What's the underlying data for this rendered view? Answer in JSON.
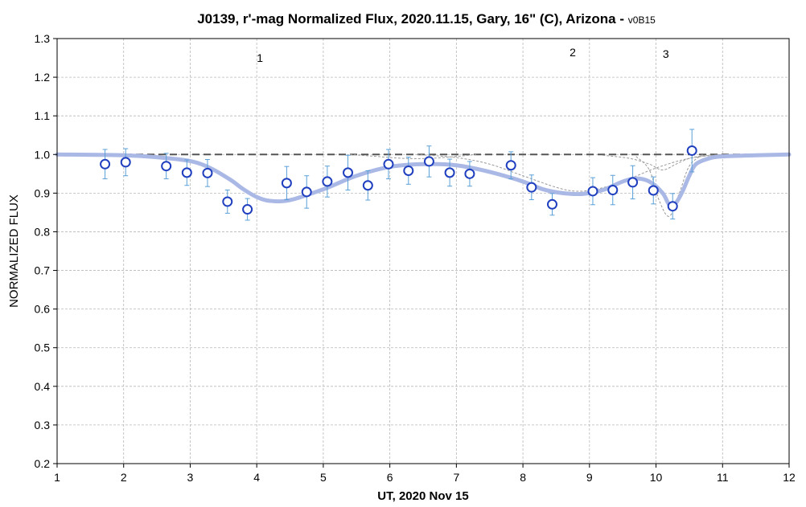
{
  "chart_data": {
    "type": "scatter",
    "title": "J0139, r'-mag Normalized Flux, 2020.11.15, Gary, 16\" (C), Arizona -",
    "subtitle": "v0B15",
    "xlabel": "UT, 2020 Nov 15",
    "ylabel": "NORMALIZED FLUX",
    "xlim": [
      1,
      12
    ],
    "ylim": [
      0.2,
      1.3
    ],
    "x_ticks": [
      "1",
      "2",
      "3",
      "4",
      "5",
      "6",
      "7",
      "8",
      "9",
      "10",
      "11",
      "12"
    ],
    "y_ticks": [
      "0.2",
      "0.3",
      "0.4",
      "0.5",
      "0.6",
      "0.7",
      "0.8",
      "0.9",
      "1.0",
      "1.1",
      "1.2",
      "1.3"
    ],
    "grid": true,
    "reference_line": 1.0,
    "annotations": [
      {
        "label": "1",
        "x": 4.0
      },
      {
        "label": "2",
        "x": 8.7
      },
      {
        "label": "3",
        "x": 10.1
      }
    ],
    "series": [
      {
        "type": "points_with_errorbars",
        "x": [
          1.72,
          2.03,
          2.64,
          2.95,
          3.26,
          3.56,
          3.86,
          4.45,
          4.75,
          5.06,
          5.37,
          5.67,
          5.98,
          6.28,
          6.59,
          6.9,
          7.2,
          7.82,
          8.13,
          8.44,
          9.05,
          9.35,
          9.65,
          9.96,
          10.25,
          10.54
        ],
        "y": [
          0.975,
          0.98,
          0.97,
          0.953,
          0.952,
          0.878,
          0.858,
          0.926,
          0.903,
          0.93,
          0.953,
          0.92,
          0.975,
          0.958,
          0.982,
          0.953,
          0.95,
          0.972,
          0.915,
          0.871,
          0.905,
          0.908,
          0.928,
          0.907,
          0.866,
          1.01
        ],
        "yerr": [
          0.038,
          0.035,
          0.033,
          0.033,
          0.035,
          0.03,
          0.028,
          0.043,
          0.042,
          0.04,
          0.045,
          0.038,
          0.038,
          0.035,
          0.04,
          0.035,
          0.032,
          0.035,
          0.032,
          0.028,
          0.035,
          0.038,
          0.043,
          0.035,
          0.033,
          0.055
        ]
      },
      {
        "type": "model_fit",
        "x": [
          1.0,
          2.0,
          2.5,
          3.0,
          3.3,
          3.6,
          3.8,
          4.0,
          4.2,
          4.5,
          5.0,
          5.5,
          6.0,
          6.5,
          7.0,
          7.5,
          8.0,
          8.3,
          8.6,
          8.9,
          9.2,
          9.5,
          9.7,
          9.9,
          10.1,
          10.2,
          10.3,
          10.4,
          10.5,
          10.6,
          10.8,
          11.0,
          11.5,
          12.0
        ],
        "y": [
          1.0,
          0.998,
          0.993,
          0.983,
          0.965,
          0.935,
          0.91,
          0.89,
          0.88,
          0.882,
          0.91,
          0.945,
          0.968,
          0.975,
          0.972,
          0.955,
          0.93,
          0.91,
          0.9,
          0.898,
          0.908,
          0.93,
          0.938,
          0.93,
          0.9,
          0.87,
          0.875,
          0.905,
          0.945,
          0.975,
          0.99,
          0.995,
          0.998,
          1.0
        ]
      },
      {
        "type": "component_dip",
        "x": [
          5.4,
          5.8,
          6.2,
          6.6,
          7.0,
          7.3
        ],
        "y": [
          1.0,
          0.995,
          0.99,
          0.99,
          0.995,
          1.0
        ]
      },
      {
        "type": "component_dip",
        "x": [
          6.4,
          7.0,
          7.5,
          8.0,
          8.5,
          8.8,
          9.1,
          9.5,
          10.0,
          10.5,
          11.0
        ],
        "y": [
          1.0,
          0.992,
          0.975,
          0.945,
          0.915,
          0.905,
          0.91,
          0.93,
          0.965,
          0.99,
          1.0
        ]
      },
      {
        "type": "component_dip",
        "x": [
          9.7,
          9.9,
          10.05,
          10.2,
          10.35,
          10.5,
          10.7
        ],
        "y": [
          0.995,
          0.96,
          0.88,
          0.84,
          0.9,
          0.97,
          1.0
        ]
      },
      {
        "type": "component_dip",
        "x": [
          9.2,
          9.6,
          9.9,
          10.1,
          10.3,
          10.5,
          10.7,
          11.0
        ],
        "y": [
          0.998,
          0.99,
          0.975,
          0.96,
          0.975,
          0.99,
          0.996,
          1.0
        ]
      }
    ],
    "colors": {
      "marker_edge": "#1f3fbf",
      "marker_fill": "#ffffff",
      "errorbar": "#5aa0d8",
      "fit": "#aab8e6",
      "component": "#999999",
      "reference": "#555555",
      "grid": "#b8b8b8"
    }
  }
}
